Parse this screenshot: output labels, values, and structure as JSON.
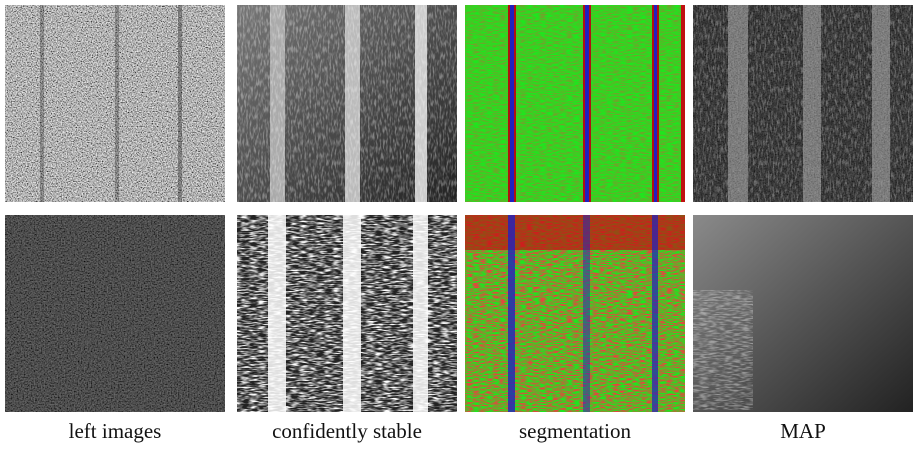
{
  "captions": [
    "left images",
    "confidently stable",
    "segmentation",
    "MAP"
  ]
}
